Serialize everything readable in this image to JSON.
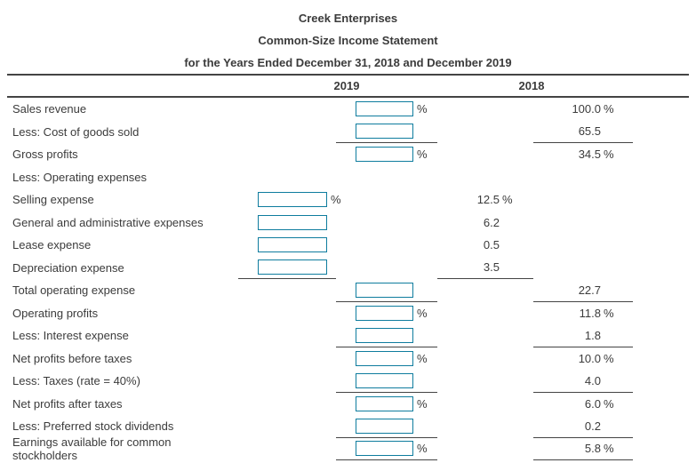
{
  "title": {
    "company": "Creek Enterprises",
    "statement": "Common-Size Income Statement",
    "period": "for the Years Ended December 31, 2018 and December 2019"
  },
  "header": {
    "col_2019": "2019",
    "col_2018": "2018"
  },
  "percent_sign": "%",
  "colors": {
    "input_border": "#0e7c9e",
    "rule": "#444444",
    "text": "#3b3b3b"
  },
  "rows": [
    {
      "label": "Sales revenue",
      "box": "main",
      "pct": true,
      "value2018": "100.0",
      "ul": false
    },
    {
      "label": "Less: Cost of goods sold",
      "box": "main",
      "pct": false,
      "value2018": "65.5",
      "ul": true
    },
    {
      "label": "Gross profits",
      "box": "main",
      "pct": true,
      "value2018": "34.5",
      "ul": false
    },
    {
      "label": "Less: Operating expenses",
      "box": "none",
      "pct": false,
      "value2018": null,
      "ul": false
    },
    {
      "label": "Selling expense",
      "box": "sub",
      "pct": true,
      "value2018": "12.5",
      "ul": false
    },
    {
      "label": "General and administrative expenses",
      "box": "sub",
      "pct": false,
      "value2018": "6.2",
      "ul": false
    },
    {
      "label": "Lease expense",
      "box": "sub",
      "pct": false,
      "value2018": "0.5",
      "ul": false
    },
    {
      "label": "Depreciation expense",
      "box": "sub",
      "pct": false,
      "value2018": "3.5",
      "ul": true
    },
    {
      "label": "Total operating expense",
      "box": "main",
      "pct": false,
      "value2018": "22.7",
      "ul": true
    },
    {
      "label": "Operating profits",
      "box": "main",
      "pct": true,
      "value2018": "11.8",
      "ul": false
    },
    {
      "label": "Less: Interest expense",
      "box": "main",
      "pct": false,
      "value2018": "1.8",
      "ul": true
    },
    {
      "label": "Net profits before taxes",
      "box": "main",
      "pct": true,
      "value2018": "10.0",
      "ul": false
    },
    {
      "label": "Less: Taxes (rate = 40%)",
      "box": "main",
      "pct": false,
      "value2018": "4.0",
      "ul": true
    },
    {
      "label": "Net profits after taxes",
      "box": "main",
      "pct": true,
      "value2018": "6.0",
      "ul": false
    },
    {
      "label": "Less: Preferred stock dividends",
      "box": "main",
      "pct": false,
      "value2018": "0.2",
      "ul": true
    },
    {
      "label": "Earnings available for common stockholders",
      "box": "main",
      "pct": true,
      "value2018": "5.8",
      "ul": true
    }
  ]
}
